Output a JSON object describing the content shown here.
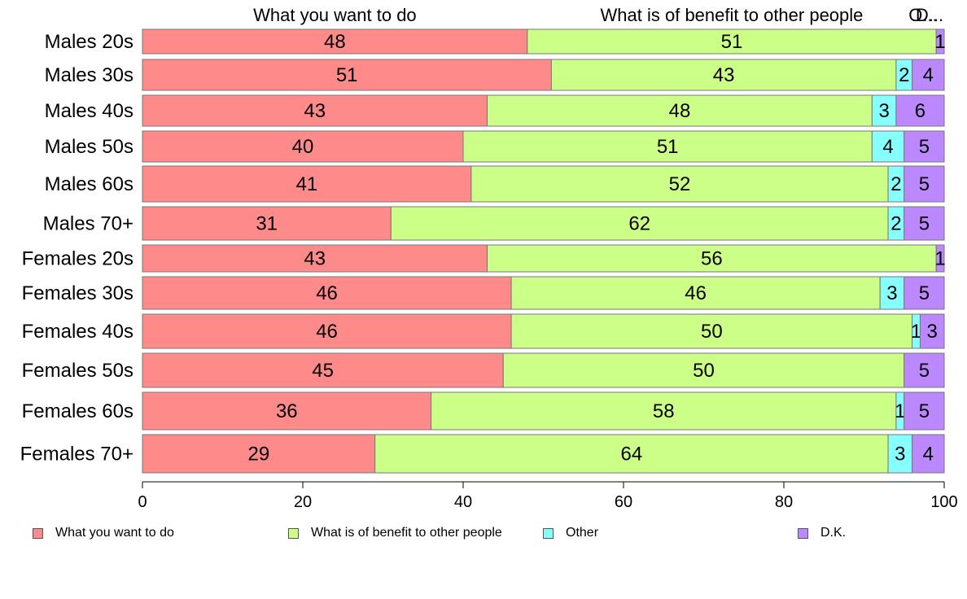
{
  "chart_data": {
    "type": "bar",
    "orientation": "horizontal",
    "stacked": true,
    "categories": [
      "Males 20s",
      "Males 30s",
      "Males 40s",
      "Males 50s",
      "Males 60s",
      "Males 70+",
      "Females 20s",
      "Females 30s",
      "Females 40s",
      "Females 50s",
      "Females 60s",
      "Females 70+"
    ],
    "series": [
      {
        "name": "What you want to do",
        "color": "#ff8a8a",
        "values": [
          48,
          51,
          43,
          40,
          41,
          31,
          43,
          46,
          46,
          45,
          36,
          29
        ]
      },
      {
        "name": "What is of benefit to other people",
        "color": "#ccff88",
        "values": [
          51,
          43,
          48,
          51,
          52,
          62,
          56,
          46,
          50,
          50,
          58,
          64
        ]
      },
      {
        "name": "Other",
        "color": "#88ffff",
        "values": [
          0,
          2,
          3,
          4,
          2,
          2,
          0,
          3,
          1,
          0,
          1,
          3
        ]
      },
      {
        "name": "D.K.",
        "color": "#bb88ff",
        "values": [
          1,
          4,
          6,
          5,
          5,
          5,
          1,
          5,
          3,
          5,
          5,
          4
        ]
      }
    ],
    "top_labels": [
      "What you want to do",
      "What is of benefit to other people",
      "O...",
      "D..."
    ],
    "xlim": [
      0,
      100
    ],
    "xticks": [
      0,
      20,
      40,
      60,
      80,
      100
    ],
    "grid": false,
    "legend_position": "bottom"
  }
}
